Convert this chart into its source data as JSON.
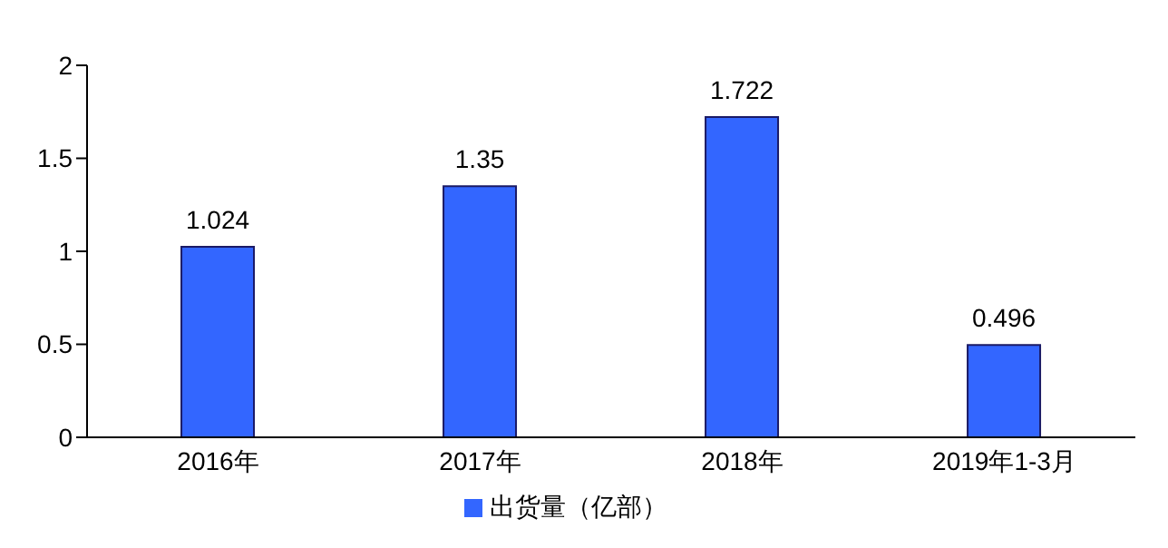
{
  "chart_data": {
    "type": "bar",
    "categories": [
      "2016年",
      "2017年",
      "2018年",
      "2019年1-3月"
    ],
    "series": [
      {
        "name": "出货量（亿部）",
        "color": "#3366ff",
        "values": [
          1.024,
          1.35,
          1.722,
          0.496
        ]
      }
    ],
    "ylim": [
      0,
      2
    ],
    "yticks": [
      0,
      0.5,
      1,
      1.5,
      2
    ],
    "grid": false,
    "legend": "bottom",
    "data_labels": true
  }
}
